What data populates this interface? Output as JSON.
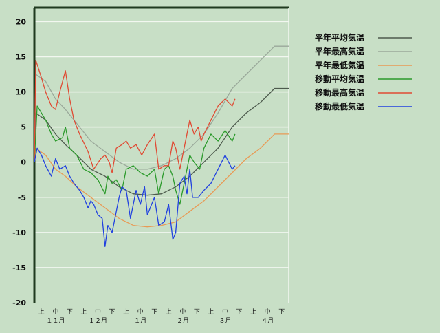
{
  "chart_data": {
    "type": "line",
    "ylim": [
      -20,
      22
    ],
    "y_ticks": [
      20,
      15,
      10,
      5,
      0,
      -5,
      -10,
      -15,
      -20
    ],
    "xlim": [
      0,
      180
    ],
    "grid": true,
    "background": "#c8dfc6",
    "grid_color": "#f2f7f0",
    "legend_position": "right",
    "x_period_ticks": [
      {
        "label": "上",
        "x": 5
      },
      {
        "label": "中",
        "x": 15
      },
      {
        "label": "下",
        "x": 25
      },
      {
        "label": "上",
        "x": 35
      },
      {
        "label": "中",
        "x": 45
      },
      {
        "label": "下",
        "x": 55
      },
      {
        "label": "上",
        "x": 65
      },
      {
        "label": "中",
        "x": 75
      },
      {
        "label": "下",
        "x": 85
      },
      {
        "label": "上",
        "x": 95
      },
      {
        "label": "中",
        "x": 105
      },
      {
        "label": "下",
        "x": 115
      },
      {
        "label": "上",
        "x": 125
      },
      {
        "label": "中",
        "x": 135
      },
      {
        "label": "下",
        "x": 145
      },
      {
        "label": "上",
        "x": 155
      },
      {
        "label": "中",
        "x": 165
      },
      {
        "label": "下",
        "x": 175
      }
    ],
    "x_month_ticks": [
      {
        "label": "１１月",
        "x": 15
      },
      {
        "label": "１２月",
        "x": 45
      },
      {
        "label": "１月",
        "x": 75
      },
      {
        "label": "２月",
        "x": 105
      },
      {
        "label": "３月",
        "x": 135
      },
      {
        "label": "４月",
        "x": 165
      }
    ],
    "series": [
      {
        "name": "平年平均気温",
        "color": "#4d5a4d",
        "points": [
          [
            0,
            0
          ],
          [
            1,
            7
          ],
          [
            8,
            6
          ],
          [
            15,
            4
          ],
          [
            22,
            2.5
          ],
          [
            30,
            1
          ],
          [
            40,
            -1
          ],
          [
            50,
            -2
          ],
          [
            60,
            -3.5
          ],
          [
            70,
            -4.5
          ],
          [
            80,
            -4.7
          ],
          [
            90,
            -4.5
          ],
          [
            100,
            -3.5
          ],
          [
            110,
            -2
          ],
          [
            120,
            0
          ],
          [
            130,
            2
          ],
          [
            140,
            5
          ],
          [
            150,
            7
          ],
          [
            160,
            8.5
          ],
          [
            170,
            10.5
          ],
          [
            180,
            10.5
          ]
        ]
      },
      {
        "name": "平年最高気温",
        "color": "#9aa89a",
        "points": [
          [
            0,
            0
          ],
          [
            1,
            12.5
          ],
          [
            8,
            11.5
          ],
          [
            15,
            9
          ],
          [
            22,
            7.5
          ],
          [
            30,
            5.5
          ],
          [
            40,
            3
          ],
          [
            50,
            1.5
          ],
          [
            60,
            0
          ],
          [
            70,
            -1
          ],
          [
            80,
            -1
          ],
          [
            90,
            -0.5
          ],
          [
            100,
            0.5
          ],
          [
            110,
            2
          ],
          [
            120,
            4
          ],
          [
            130,
            7
          ],
          [
            140,
            10.5
          ],
          [
            150,
            12.5
          ],
          [
            160,
            14.5
          ],
          [
            170,
            16.5
          ],
          [
            180,
            16.5
          ]
        ]
      },
      {
        "name": "平年最低気温",
        "color": "#e89a55",
        "points": [
          [
            0,
            0
          ],
          [
            1,
            2
          ],
          [
            8,
            1
          ],
          [
            15,
            -1
          ],
          [
            22,
            -2
          ],
          [
            30,
            -3.5
          ],
          [
            40,
            -5
          ],
          [
            50,
            -6.5
          ],
          [
            60,
            -8
          ],
          [
            70,
            -9
          ],
          [
            80,
            -9.2
          ],
          [
            90,
            -9
          ],
          [
            100,
            -8.5
          ],
          [
            110,
            -7
          ],
          [
            120,
            -5.5
          ],
          [
            130,
            -3.5
          ],
          [
            140,
            -1.5
          ],
          [
            150,
            0.5
          ],
          [
            160,
            2
          ],
          [
            170,
            4
          ],
          [
            180,
            4
          ]
        ]
      },
      {
        "name": "移動平均気温",
        "color": "#2b9a2b",
        "points": [
          [
            0,
            0
          ],
          [
            2,
            8
          ],
          [
            5,
            7
          ],
          [
            8,
            6
          ],
          [
            12,
            4
          ],
          [
            15,
            3
          ],
          [
            20,
            3.5
          ],
          [
            22,
            5
          ],
          [
            25,
            2
          ],
          [
            30,
            1
          ],
          [
            35,
            -1
          ],
          [
            40,
            -1.5
          ],
          [
            45,
            -2.5
          ],
          [
            50,
            -4.5
          ],
          [
            52,
            -2
          ],
          [
            55,
            -3
          ],
          [
            58,
            -2.5
          ],
          [
            62,
            -4
          ],
          [
            65,
            -1
          ],
          [
            70,
            -0.5
          ],
          [
            75,
            -1.5
          ],
          [
            80,
            -2
          ],
          [
            85,
            -1
          ],
          [
            88,
            -4.5
          ],
          [
            92,
            -1
          ],
          [
            95,
            -0.5
          ],
          [
            98,
            -2
          ],
          [
            100,
            -4
          ],
          [
            103,
            -6
          ],
          [
            106,
            -3
          ],
          [
            110,
            1
          ],
          [
            113,
            0
          ],
          [
            117,
            -1
          ],
          [
            120,
            2
          ],
          [
            125,
            4
          ],
          [
            130,
            3
          ],
          [
            135,
            4.5
          ],
          [
            140,
            3
          ],
          [
            142,
            4
          ]
        ]
      },
      {
        "name": "移動最高気温",
        "color": "#e04a33",
        "points": [
          [
            0,
            0
          ],
          [
            1,
            14.5
          ],
          [
            5,
            12
          ],
          [
            8,
            10
          ],
          [
            12,
            8
          ],
          [
            15,
            7.5
          ],
          [
            18,
            10
          ],
          [
            22,
            13
          ],
          [
            25,
            9
          ],
          [
            28,
            6
          ],
          [
            32,
            4
          ],
          [
            38,
            1.5
          ],
          [
            42,
            -1
          ],
          [
            47,
            0.5
          ],
          [
            50,
            1
          ],
          [
            53,
            0
          ],
          [
            55,
            -1.5
          ],
          [
            58,
            2
          ],
          [
            62,
            2.5
          ],
          [
            65,
            3
          ],
          [
            68,
            2
          ],
          [
            72,
            2.5
          ],
          [
            76,
            1
          ],
          [
            80,
            2.5
          ],
          [
            85,
            4
          ],
          [
            88,
            -1
          ],
          [
            92,
            -0.5
          ],
          [
            95,
            -0.5
          ],
          [
            98,
            3
          ],
          [
            100,
            2
          ],
          [
            103,
            -1
          ],
          [
            107,
            3
          ],
          [
            110,
            6
          ],
          [
            113,
            4
          ],
          [
            116,
            5
          ],
          [
            118,
            3
          ],
          [
            120,
            4
          ],
          [
            125,
            6
          ],
          [
            130,
            8
          ],
          [
            135,
            9
          ],
          [
            140,
            8
          ],
          [
            142,
            9
          ]
        ]
      },
      {
        "name": "移動最低気温",
        "color": "#2040e0",
        "points": [
          [
            0,
            0
          ],
          [
            2,
            2
          ],
          [
            5,
            1
          ],
          [
            8,
            -0.5
          ],
          [
            12,
            -2
          ],
          [
            15,
            0.5
          ],
          [
            18,
            -1
          ],
          [
            22,
            -0.5
          ],
          [
            25,
            -2
          ],
          [
            28,
            -3
          ],
          [
            32,
            -4
          ],
          [
            35,
            -5
          ],
          [
            38,
            -6.5
          ],
          [
            40,
            -5.5
          ],
          [
            42,
            -6
          ],
          [
            45,
            -7.5
          ],
          [
            48,
            -8
          ],
          [
            50,
            -12
          ],
          [
            52,
            -9
          ],
          [
            55,
            -10
          ],
          [
            58,
            -7
          ],
          [
            60,
            -5
          ],
          [
            62,
            -3.5
          ],
          [
            65,
            -4
          ],
          [
            68,
            -8
          ],
          [
            72,
            -4
          ],
          [
            75,
            -6
          ],
          [
            78,
            -3.5
          ],
          [
            80,
            -7.5
          ],
          [
            85,
            -5
          ],
          [
            88,
            -9
          ],
          [
            92,
            -8.5
          ],
          [
            95,
            -6
          ],
          [
            98,
            -11
          ],
          [
            100,
            -10
          ],
          [
            103,
            -3
          ],
          [
            106,
            -2
          ],
          [
            108,
            -4.5
          ],
          [
            110,
            -1
          ],
          [
            112,
            -5
          ],
          [
            116,
            -5
          ],
          [
            120,
            -4
          ],
          [
            125,
            -3
          ],
          [
            130,
            -1
          ],
          [
            135,
            1
          ],
          [
            140,
            -1
          ],
          [
            142,
            -0.5
          ]
        ]
      }
    ]
  }
}
